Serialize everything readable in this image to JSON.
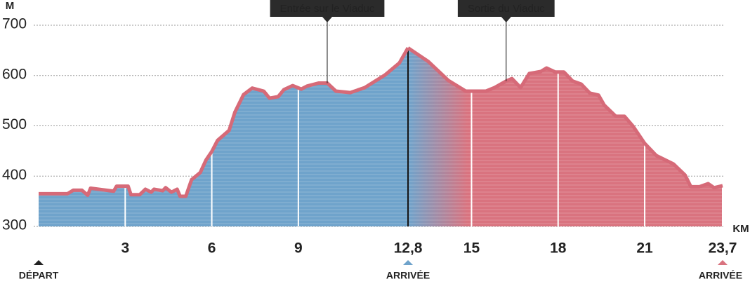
{
  "chart_data": {
    "type": "area",
    "y_label": "M",
    "x_label": "KM",
    "ylim": [
      300,
      700
    ],
    "yticks": [
      300,
      400,
      500,
      600,
      700
    ],
    "xlim": [
      0,
      23.7
    ],
    "xticks": [
      3,
      6,
      9,
      {
        "value": 12.8,
        "label": "12,8"
      },
      15,
      18,
      21,
      {
        "value": 23.7,
        "label": "23,7"
      }
    ],
    "grid": true,
    "series": [
      {
        "color": "#6fa3cb",
        "x": [
          0,
          1.0,
          1.2,
          1.5,
          1.7,
          1.8,
          2.6,
          2.7,
          3.1,
          3.2,
          3.5,
          3.7,
          3.9,
          4.0,
          4.3,
          4.4,
          4.6,
          4.8,
          4.9,
          5.1,
          5.3,
          5.6,
          5.8,
          6.0,
          6.2,
          6.6,
          6.8,
          7.1,
          7.4,
          7.8,
          8.0,
          8.3,
          8.5,
          8.8,
          9.1,
          9.3,
          9.7,
          10.0,
          10.3,
          10.8,
          11.3,
          12.0,
          12.5,
          12.8
        ],
        "values": [
          365,
          365,
          372,
          372,
          362,
          376,
          370,
          380,
          380,
          363,
          363,
          374,
          368,
          374,
          371,
          377,
          368,
          374,
          360,
          360,
          393,
          407,
          432,
          449,
          471,
          491,
          527,
          562,
          575,
          569,
          555,
          558,
          572,
          580,
          573,
          579,
          585,
          585,
          569,
          566,
          576,
          601,
          625,
          655
        ]
      },
      {
        "color": "#d9737f",
        "x": [
          12.8,
          13.5,
          14.2,
          14.8,
          15.5,
          15.8,
          16.2,
          16.4,
          16.7,
          17.0,
          17.4,
          17.6,
          17.9,
          18.2,
          18.5,
          18.8,
          19.1,
          19.4,
          19.6,
          20.0,
          20.3,
          20.6,
          21.0,
          21.4,
          22.0,
          22.4,
          22.6,
          22.9,
          23.2,
          23.4,
          23.7
        ],
        "values": [
          655,
          628,
          590,
          569,
          569,
          576,
          589,
          594,
          576,
          604,
          608,
          615,
          607,
          607,
          589,
          583,
          565,
          561,
          541,
          519,
          519,
          499,
          465,
          441,
          424,
          402,
          379,
          379,
          385,
          377,
          381
        ]
      }
    ],
    "annotations": [
      {
        "text": "Entrée sur le Viaduc",
        "x": 10.0,
        "y": 585
      },
      {
        "text": "Sortie du Viaduc",
        "x": 16.2,
        "y": 589
      }
    ],
    "markers": [
      {
        "x": 0,
        "label": "DÉPART",
        "color": "#222222"
      },
      {
        "x": 12.8,
        "label": "ARRIVÉE",
        "color": "#6fa3cb"
      },
      {
        "x": 23.7,
        "label": "ARRIVÉE",
        "color": "#d9737f"
      }
    ]
  }
}
